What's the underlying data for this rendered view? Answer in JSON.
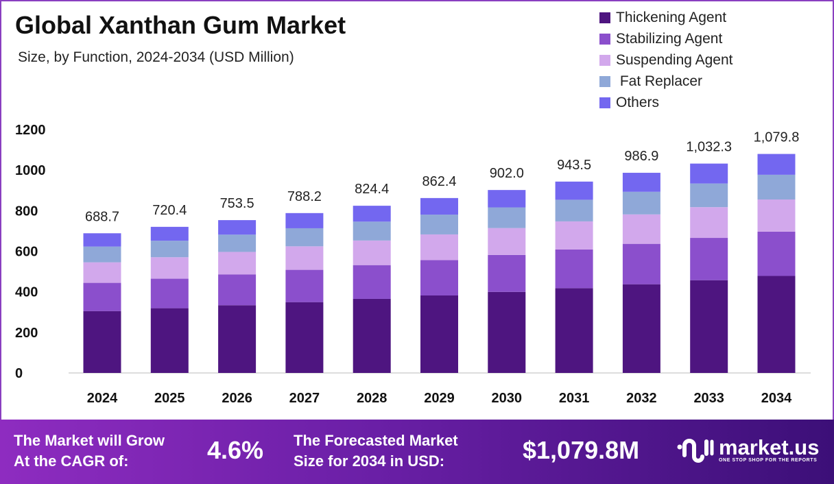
{
  "chart_data": {
    "type": "bar",
    "stacked": true,
    "title": "Global Xanthan Gum Market",
    "subtitle": "Size, by Function, 2024-2034 (USD Million)",
    "xlabel": "",
    "ylabel": "",
    "ylim": [
      0,
      1200
    ],
    "yticks": [
      "0",
      "200",
      "400",
      "600",
      "800",
      "1000",
      "1200"
    ],
    "grid": false,
    "legend_position": "top-right",
    "categories": [
      "2024",
      "2025",
      "2026",
      "2027",
      "2028",
      "2029",
      "2030",
      "2031",
      "2032",
      "2033",
      "2034"
    ],
    "totals": [
      688.7,
      720.4,
      753.5,
      788.2,
      824.4,
      862.4,
      902.0,
      943.5,
      986.9,
      1032.3,
      1079.8
    ],
    "total_labels": [
      "688.7",
      "720.4",
      "753.5",
      "788.2",
      "824.4",
      "862.4",
      "902.0",
      "943.5",
      "986.9",
      "1,032.3",
      "1,079.8"
    ],
    "series": [
      {
        "name": "Thickening Agent",
        "color": "#4e1580",
        "values": [
          305.1,
          319.1,
          333.8,
          349.2,
          365.2,
          382.0,
          399.6,
          418.0,
          437.2,
          457.3,
          478.4
        ]
      },
      {
        "name": "Stabilizing Agent",
        "color": "#8b4fcc",
        "values": [
          139.1,
          145.5,
          152.2,
          159.2,
          166.5,
          174.2,
          182.2,
          190.6,
          199.4,
          208.5,
          218.1
        ]
      },
      {
        "name": "Suspending Agent",
        "color": "#d2a8ec",
        "values": [
          101.2,
          105.9,
          110.8,
          115.9,
          121.2,
          126.8,
          132.6,
          138.7,
          145.1,
          151.7,
          158.7
        ]
      },
      {
        "name": " Fat Replacer",
        "color": "#8fa8d8",
        "values": [
          77.8,
          81.4,
          85.1,
          89.1,
          93.2,
          97.5,
          101.9,
          106.6,
          111.5,
          116.6,
          122.0
        ]
      },
      {
        "name": "Others",
        "color": "#7367f0",
        "values": [
          65.5,
          68.5,
          71.6,
          74.8,
          78.3,
          81.9,
          85.7,
          89.6,
          93.7,
          98.2,
          102.6
        ]
      }
    ]
  },
  "footer": {
    "cagr_label_1": "The Market will Grow",
    "cagr_label_2": "At the CAGR of:",
    "cagr_value": "4.6%",
    "forecast_label_1": "The Forecasted Market",
    "forecast_label_2": "Size for 2034 in USD:",
    "forecast_value": "$1,079.8M",
    "logo_text": "market.us",
    "logo_tagline": "ONE STOP SHOP FOR THE REPORTS"
  }
}
